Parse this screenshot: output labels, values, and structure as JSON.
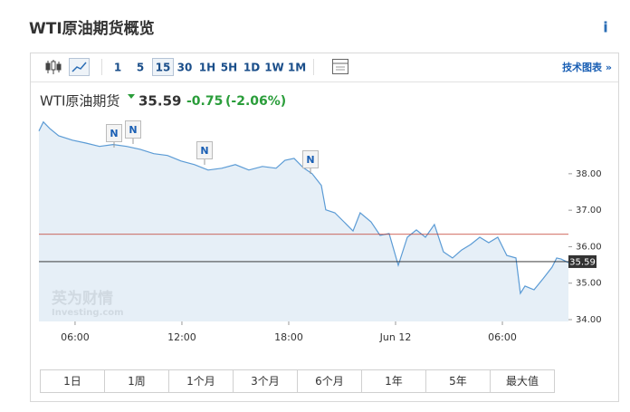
{
  "header": {
    "title": "WTI原油期货概览",
    "info": "i"
  },
  "toolbar": {
    "intervals": [
      "1",
      "5",
      "15",
      "30",
      "1H",
      "5H",
      "1D",
      "1W",
      "1M"
    ],
    "technical_link": "技术图表 »"
  },
  "quote": {
    "name": "WTI原油期货",
    "price": "35.59",
    "change": "-0.75",
    "change_pct": "(-2.06%)"
  },
  "chart_data": {
    "type": "line",
    "x": [
      3.97,
      4.22,
      4.58,
      5.08,
      5.85,
      6.61,
      7.37,
      8.14,
      8.9,
      9.66,
      10.42,
      11.19,
      11.95,
      12.71,
      13.47,
      14.24,
      15.0,
      15.76,
      16.52,
      17.29,
      17.79,
      18.3,
      18.81,
      19.32,
      19.83,
      20.08,
      20.59,
      21.1,
      21.61,
      22.01,
      22.62,
      23.13,
      23.64,
      24.15,
      24.66,
      25.17,
      25.68,
      26.18,
      26.69,
      27.2,
      27.71,
      28.22,
      28.73,
      29.23,
      29.74,
      30.25,
      30.76,
      31.01,
      31.27,
      31.78,
      32.28,
      32.79,
      33.05,
      33.3,
      33.71
    ],
    "values": [
      39.17,
      39.42,
      39.24,
      39.04,
      38.92,
      38.84,
      38.75,
      38.8,
      38.75,
      38.67,
      38.55,
      38.5,
      38.35,
      38.25,
      38.1,
      38.15,
      38.25,
      38.1,
      38.2,
      38.15,
      38.37,
      38.42,
      38.17,
      38.0,
      37.68,
      37.01,
      36.93,
      36.68,
      36.43,
      36.93,
      36.68,
      36.31,
      36.36,
      35.49,
      36.26,
      36.46,
      36.26,
      36.61,
      35.86,
      35.69,
      35.91,
      36.06,
      36.26,
      36.11,
      36.26,
      35.76,
      35.69,
      34.72,
      34.92,
      34.82,
      35.12,
      35.44,
      35.69,
      35.66,
      35.56
    ],
    "color": "#5b9bd5",
    "xlim": [
      3.97,
      33.71
    ],
    "ylim": [
      33.95,
      39.66
    ],
    "xticks": [
      {
        "value": 6,
        "label": "06:00"
      },
      {
        "value": 12,
        "label": "12:00"
      },
      {
        "value": 18,
        "label": "18:00"
      },
      {
        "value": 24,
        "label": "Jun 12"
      },
      {
        "value": 30,
        "label": "06:00"
      }
    ],
    "yticks": [
      {
        "value": 34,
        "label": "34.00"
      },
      {
        "value": 35,
        "label": "35.00"
      },
      {
        "value": 36,
        "label": "36.00"
      },
      {
        "value": 37,
        "label": "37.00"
      },
      {
        "value": 38,
        "label": "38.00"
      }
    ],
    "previous_close": 36.34,
    "last_price": 35.59,
    "news_markers": [
      "N",
      "N",
      "N",
      "N"
    ],
    "watermark": [
      "英为财情",
      "Investing.com"
    ]
  },
  "periods": [
    "1日",
    "1周",
    "1个月",
    "3个月",
    "6个月",
    "1年",
    "5年",
    "最大值"
  ]
}
